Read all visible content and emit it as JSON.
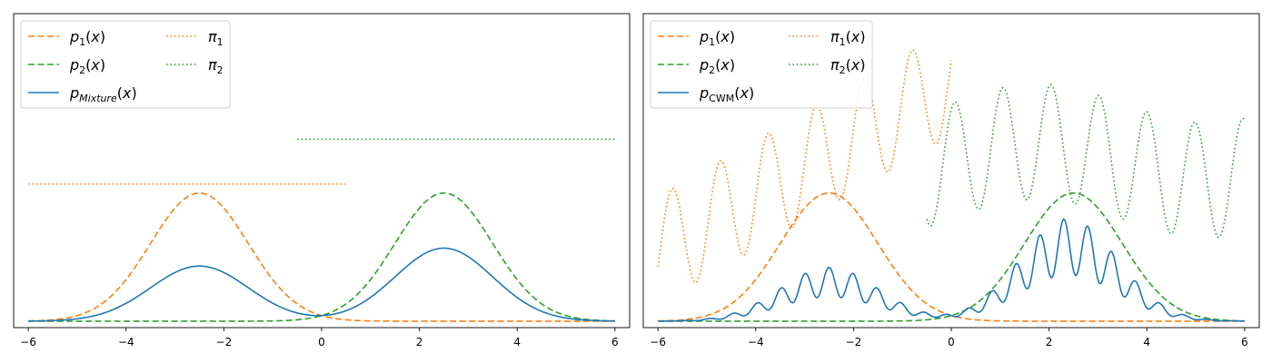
{
  "chart_data": [
    {
      "type": "line",
      "panel": "left",
      "xlim": [
        -6.3,
        6.3
      ],
      "x_ticks": [
        -6,
        -4,
        -2,
        0,
        2,
        4,
        6
      ],
      "x_tick_labels": [
        "−6",
        "−4",
        "−2",
        "0",
        "2",
        "4",
        "6"
      ],
      "y_ticks_shown": false,
      "legend_placement": "top-left",
      "legend_columns": 2,
      "legend": [
        {
          "base": "p",
          "sub": "1",
          "suffix": "(x)",
          "style": "dashed",
          "color": "#ff7f0e"
        },
        {
          "base": "p",
          "sub": "2",
          "suffix": "(x)",
          "style": "dashed",
          "color": "#2ca02c"
        },
        {
          "base": "p",
          "sub": "Mixture",
          "sub_italic": true,
          "suffix": "(x)",
          "style": "solid",
          "color": "#1f77b4"
        },
        {
          "base": "π",
          "sub": "1",
          "suffix": "",
          "style": "dotted",
          "color": "#ff7f0e"
        },
        {
          "base": "π",
          "sub": "2",
          "suffix": "",
          "style": "dotted",
          "color": "#2ca02c"
        }
      ],
      "series": [
        {
          "name": "p1(x)",
          "kind": "gaussian",
          "mean": -2.5,
          "sd": 1.0,
          "peak": 1.0,
          "style": "dashed",
          "color": "#ff7f0e"
        },
        {
          "name": "p2(x)",
          "kind": "gaussian",
          "mean": 2.5,
          "sd": 1.0,
          "peak": 1.0,
          "style": "dashed",
          "color": "#2ca02c"
        },
        {
          "name": "pMixture(x)",
          "kind": "mixture",
          "components": [
            {
              "mean": -2.5,
              "sd": 1.0,
              "weight": 0.43
            },
            {
              "mean": 2.5,
              "sd": 1.0,
              "weight": 0.57
            }
          ],
          "style": "solid",
          "color": "#1f77b4"
        },
        {
          "name": "π1",
          "kind": "constant",
          "x_range": [
            -6,
            0.5
          ],
          "value": 1.07,
          "style": "dotted",
          "color": "#ff7f0e"
        },
        {
          "name": "π2",
          "kind": "constant",
          "x_range": [
            -0.5,
            6
          ],
          "value": 1.42,
          "style": "dotted",
          "color": "#2ca02c"
        }
      ],
      "ylim": [
        -0.05,
        2.4
      ]
    },
    {
      "type": "line",
      "panel": "right",
      "xlim": [
        -6.3,
        6.3
      ],
      "x_ticks": [
        -6,
        -4,
        -2,
        0,
        2,
        4,
        6
      ],
      "x_tick_labels": [
        "−6",
        "−4",
        "−2",
        "0",
        "2",
        "4",
        "6"
      ],
      "y_ticks_shown": false,
      "legend_placement": "top-left",
      "legend_columns": 2,
      "legend": [
        {
          "base": "p",
          "sub": "1",
          "suffix": "(x)",
          "style": "dashed",
          "color": "#ff7f0e"
        },
        {
          "base": "p",
          "sub": "2",
          "suffix": "(x)",
          "style": "dashed",
          "color": "#2ca02c"
        },
        {
          "base": "p",
          "sub": "CWM",
          "sub_italic": false,
          "suffix": "(x)",
          "style": "solid",
          "color": "#1f77b4"
        },
        {
          "base": "π",
          "sub": "1",
          "suffix": "(x)",
          "style": "dotted",
          "color": "#ff7f0e"
        },
        {
          "base": "π",
          "sub": "2",
          "suffix": "(x)",
          "style": "dotted",
          "color": "#2ca02c"
        }
      ],
      "series": [
        {
          "name": "p1(x)",
          "kind": "gaussian",
          "mean": -2.5,
          "sd": 1.0,
          "peak": 1.0,
          "style": "dashed",
          "color": "#ff7f0e"
        },
        {
          "name": "p2(x)",
          "kind": "gaussian",
          "mean": 2.5,
          "sd": 1.0,
          "peak": 1.0,
          "style": "dashed",
          "color": "#2ca02c"
        },
        {
          "name": "pCWM(x)",
          "kind": "oscillating_mixture",
          "components": [
            {
              "mean": -2.5,
              "sd": 1.0
            },
            {
              "mean": 2.5,
              "sd": 1.0
            }
          ],
          "frequency": 7.5,
          "style": "solid",
          "color": "#1f77b4"
        },
        {
          "name": "π1(x)",
          "kind": "oscillating",
          "x_range": [
            -6,
            0
          ],
          "style": "dotted",
          "color": "#ff7f0e"
        },
        {
          "name": "π2(x)",
          "kind": "oscillating",
          "x_range": [
            -0.5,
            6
          ],
          "style": "dotted",
          "color": "#2ca02c"
        }
      ],
      "ylim": [
        -0.05,
        2.4
      ]
    }
  ]
}
